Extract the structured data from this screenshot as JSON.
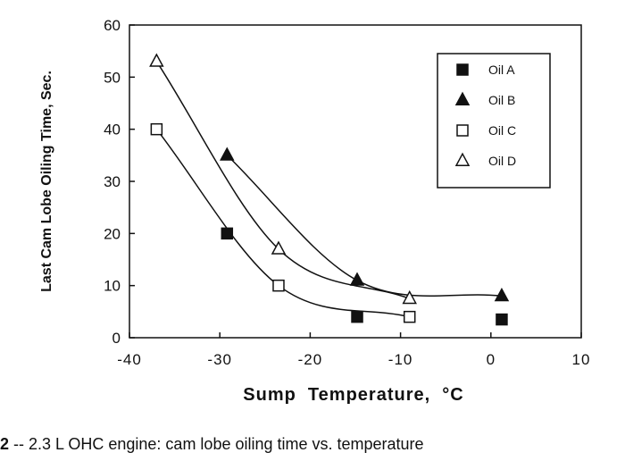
{
  "chart_data": {
    "type": "scatter",
    "xlabel": "Sump  Temperature,  °C",
    "ylabel": "Last Cam Lobe Oiling Time, Sec.",
    "xlim": [
      -40,
      10
    ],
    "ylim": [
      0,
      60
    ],
    "x_ticks": [
      -40,
      -30,
      -20,
      -10,
      0,
      10
    ],
    "x_tick_labels": [
      "-40",
      "-30",
      "-20",
      "-10",
      "0",
      "10"
    ],
    "y_ticks": [
      0,
      10,
      20,
      30,
      40,
      50,
      60
    ],
    "y_tick_labels": [
      "0",
      "10",
      "20",
      "30",
      "40",
      "50",
      "60"
    ],
    "grid": false,
    "legend_position": "top-right",
    "series": [
      {
        "name": "Oil A",
        "marker": "filled-square",
        "smoothed_line": false,
        "x": [
          -29.2,
          -14.8,
          1.2
        ],
        "y": [
          20,
          4,
          3.5
        ]
      },
      {
        "name": "Oil B",
        "marker": "filled-triangle",
        "smoothed_line": true,
        "x": [
          -29.2,
          -14.8,
          1.2
        ],
        "y": [
          35,
          11,
          8
        ]
      },
      {
        "name": "Oil C",
        "marker": "open-square",
        "smoothed_line": true,
        "x": [
          -37,
          -23.5,
          -9
        ],
        "y": [
          40,
          10,
          4
        ]
      },
      {
        "name": "Oil D",
        "marker": "open-triangle",
        "smoothed_line": true,
        "x": [
          -37,
          -23.5,
          -9
        ],
        "y": [
          53,
          17,
          7.5
        ]
      }
    ]
  },
  "caption": {
    "number": "2",
    "text": " -- 2.3 L OHC engine: cam lobe oiling time vs. temperature"
  }
}
